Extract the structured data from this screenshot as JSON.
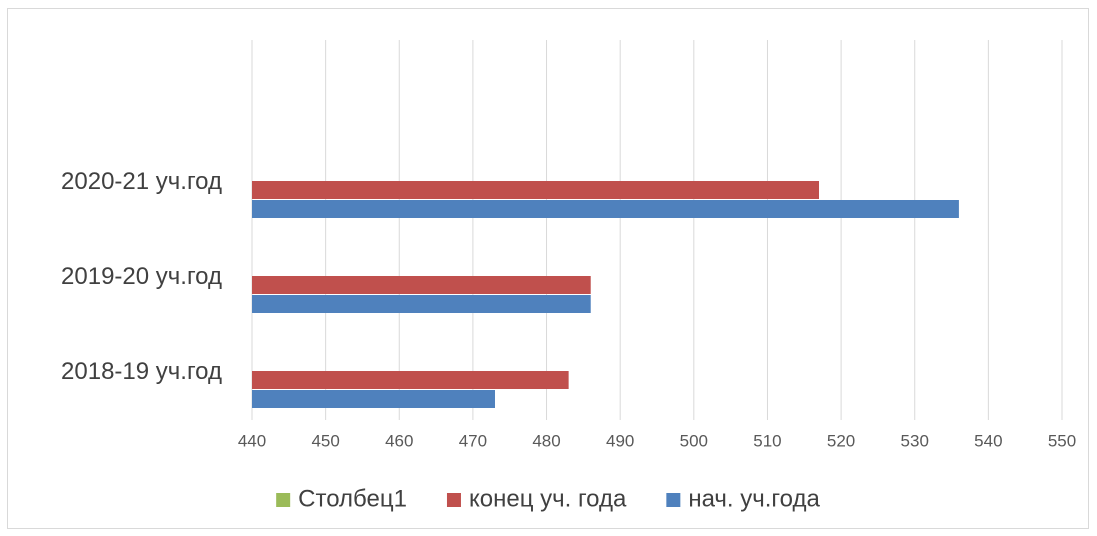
{
  "chart_data": {
    "type": "barh",
    "categories": [
      "2018-19 уч.год",
      "2019-20 уч.год",
      "2020-21 уч.год",
      null
    ],
    "series": [
      {
        "name": "Столбец1",
        "color": "#9bbb59",
        "values": [
          null,
          null,
          null,
          null
        ]
      },
      {
        "name": "конец уч. года",
        "color": "#c0504d",
        "values": [
          483,
          486,
          517,
          null
        ]
      },
      {
        "name": "нач. уч.года",
        "color": "#4f81bd",
        "values": [
          473,
          486,
          536,
          null
        ]
      }
    ],
    "xlim": [
      440,
      550
    ],
    "xticks": [
      440,
      450,
      460,
      470,
      480,
      490,
      500,
      510,
      520,
      530,
      540,
      550
    ],
    "grid": true,
    "legend": "bottom"
  }
}
